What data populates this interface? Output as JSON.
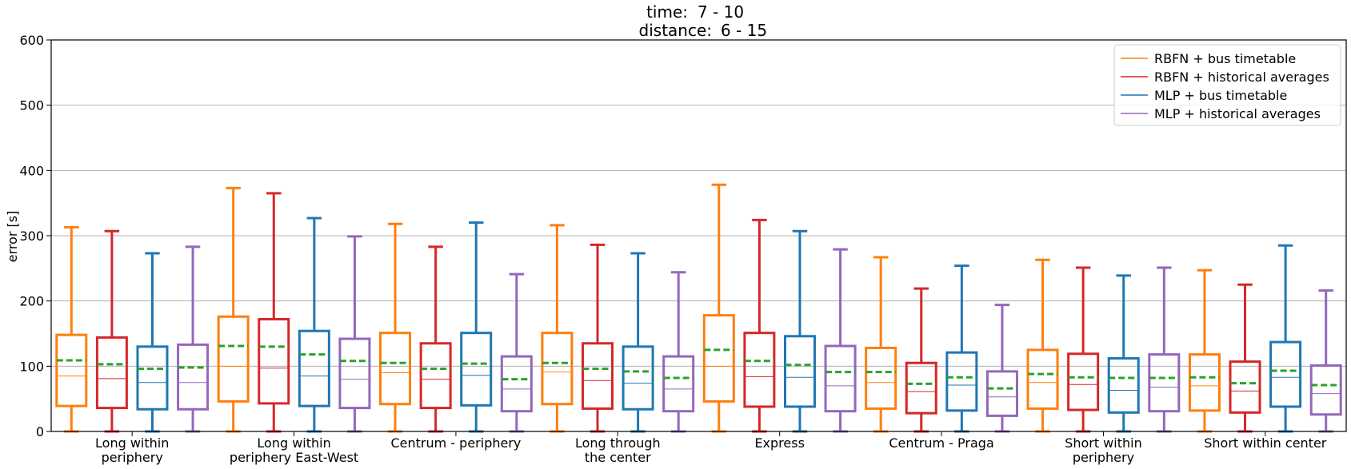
{
  "chart_data": {
    "type": "boxplot",
    "title_lines": [
      {
        "label": "time:",
        "value": "7 - 10"
      },
      {
        "label": "distance:",
        "value": "6 - 15"
      }
    ],
    "ylabel": "error [s]",
    "ylim": [
      0,
      600
    ],
    "yticks": [
      0,
      100,
      200,
      300,
      400,
      500,
      600
    ],
    "grid": "horizontal",
    "legend_position": "top-right",
    "categories": [
      [
        "Long within",
        "periphery"
      ],
      [
        "Long within",
        "periphery East-West"
      ],
      [
        "Centrum - periphery"
      ],
      [
        "Long through",
        "the center"
      ],
      [
        "Express"
      ],
      [
        "Centrum - Praga"
      ],
      [
        "Short within",
        "periphery"
      ],
      [
        "Short within center"
      ]
    ],
    "mean_line_color": "#2ca02c",
    "series": [
      {
        "name": "RBFN + bus timetable",
        "color": "#ff7f0e",
        "boxes": [
          {
            "whislo": 0,
            "q1": 39,
            "med": 85,
            "mean": 109,
            "q3": 148,
            "whishi": 313
          },
          {
            "whislo": 0,
            "q1": 46,
            "med": 100,
            "mean": 131,
            "q3": 176,
            "whishi": 373
          },
          {
            "whislo": 0,
            "q1": 42,
            "med": 90,
            "mean": 105,
            "q3": 151,
            "whishi": 318
          },
          {
            "whislo": 0,
            "q1": 42,
            "med": 91,
            "mean": 105,
            "q3": 151,
            "whishi": 316
          },
          {
            "whislo": 0,
            "q1": 46,
            "med": 100,
            "mean": 125,
            "q3": 178,
            "whishi": 378
          },
          {
            "whislo": 0,
            "q1": 35,
            "med": 75,
            "mean": 91,
            "q3": 128,
            "whishi": 267
          },
          {
            "whislo": 0,
            "q1": 35,
            "med": 75,
            "mean": 88,
            "q3": 125,
            "whishi": 263
          },
          {
            "whislo": 0,
            "q1": 32,
            "med": 70,
            "mean": 83,
            "q3": 118,
            "whishi": 247
          }
        ]
      },
      {
        "name": "RBFN + historical averages",
        "color": "#d62728",
        "boxes": [
          {
            "whislo": 0,
            "q1": 36,
            "med": 81,
            "mean": 103,
            "q3": 144,
            "whishi": 307
          },
          {
            "whislo": 0,
            "q1": 43,
            "med": 97,
            "mean": 130,
            "q3": 172,
            "whishi": 365
          },
          {
            "whislo": 0,
            "q1": 36,
            "med": 80,
            "mean": 96,
            "q3": 135,
            "whishi": 283
          },
          {
            "whislo": 0,
            "q1": 35,
            "med": 78,
            "mean": 96,
            "q3": 135,
            "whishi": 286
          },
          {
            "whislo": 0,
            "q1": 38,
            "med": 84,
            "mean": 108,
            "q3": 151,
            "whishi": 324
          },
          {
            "whislo": 0,
            "q1": 28,
            "med": 61,
            "mean": 73,
            "q3": 105,
            "whishi": 219
          },
          {
            "whislo": 0,
            "q1": 33,
            "med": 72,
            "mean": 83,
            "q3": 119,
            "whishi": 251
          },
          {
            "whislo": 0,
            "q1": 29,
            "med": 62,
            "mean": 74,
            "q3": 107,
            "whishi": 225
          }
        ]
      },
      {
        "name": "MLP + bus timetable",
        "color": "#1f77b4",
        "boxes": [
          {
            "whislo": 0,
            "q1": 34,
            "med": 75,
            "mean": 96,
            "q3": 130,
            "whishi": 273
          },
          {
            "whislo": 0,
            "q1": 39,
            "med": 85,
            "mean": 118,
            "q3": 154,
            "whishi": 327
          },
          {
            "whislo": 0,
            "q1": 40,
            "med": 86,
            "mean": 104,
            "q3": 151,
            "whishi": 320
          },
          {
            "whislo": 0,
            "q1": 34,
            "med": 74,
            "mean": 92,
            "q3": 130,
            "whishi": 273
          },
          {
            "whislo": 0,
            "q1": 38,
            "med": 83,
            "mean": 102,
            "q3": 146,
            "whishi": 307
          },
          {
            "whislo": 0,
            "q1": 32,
            "med": 71,
            "mean": 83,
            "q3": 121,
            "whishi": 254
          },
          {
            "whislo": 0,
            "q1": 29,
            "med": 63,
            "mean": 82,
            "q3": 112,
            "whishi": 239
          },
          {
            "whislo": 0,
            "q1": 38,
            "med": 83,
            "mean": 93,
            "q3": 137,
            "whishi": 285
          }
        ]
      },
      {
        "name": "MLP + historical averages",
        "color": "#9467bd",
        "boxes": [
          {
            "whislo": 0,
            "q1": 34,
            "med": 75,
            "mean": 98,
            "q3": 133,
            "whishi": 283
          },
          {
            "whislo": 0,
            "q1": 36,
            "med": 80,
            "mean": 108,
            "q3": 142,
            "whishi": 299
          },
          {
            "whislo": 0,
            "q1": 31,
            "med": 65,
            "mean": 80,
            "q3": 115,
            "whishi": 241
          },
          {
            "whislo": 0,
            "q1": 31,
            "med": 65,
            "mean": 82,
            "q3": 115,
            "whishi": 244
          },
          {
            "whislo": 0,
            "q1": 31,
            "med": 70,
            "mean": 91,
            "q3": 131,
            "whishi": 279
          },
          {
            "whislo": 0,
            "q1": 24,
            "med": 53,
            "mean": 66,
            "q3": 92,
            "whishi": 194
          },
          {
            "whislo": 0,
            "q1": 31,
            "med": 68,
            "mean": 82,
            "q3": 118,
            "whishi": 251
          },
          {
            "whislo": 0,
            "q1": 26,
            "med": 58,
            "mean": 71,
            "q3": 101,
            "whishi": 216
          }
        ]
      }
    ]
  }
}
